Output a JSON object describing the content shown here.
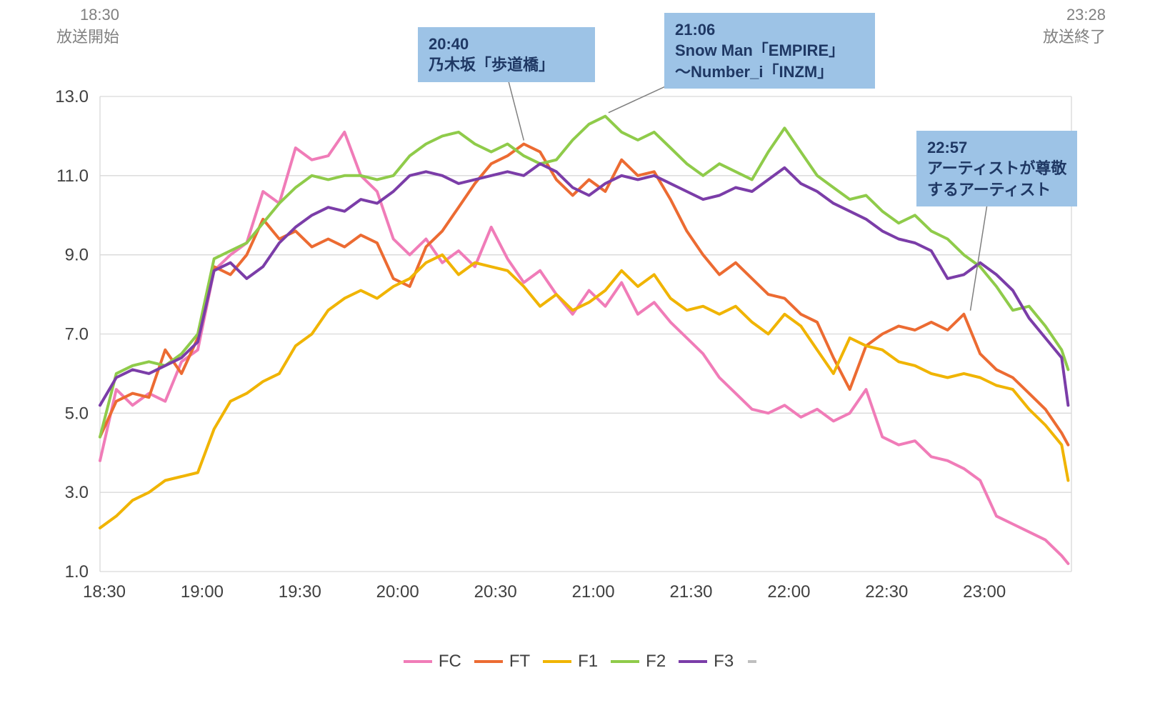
{
  "header": {
    "start_time": "18:30",
    "start_caption": "放送開始",
    "end_time": "23:28",
    "end_caption": "放送終了"
  },
  "chart_data": {
    "type": "line",
    "title": "",
    "grid": "horizontal",
    "legend_position": "bottom-center",
    "x_axis": {
      "unit": "minutes_after_18:30",
      "range": [
        0,
        298
      ],
      "ticks": [
        0,
        30,
        60,
        90,
        120,
        150,
        180,
        210,
        240,
        270
      ],
      "tick_labels": [
        "18:30",
        "19:00",
        "19:30",
        "20:00",
        "20:30",
        "21:00",
        "21:30",
        "22:00",
        "22:30",
        "23:00"
      ]
    },
    "y_axis": {
      "ylim": [
        1,
        13
      ],
      "ticks": [
        1,
        3,
        5,
        7,
        9,
        11,
        13
      ],
      "tick_labels": [
        "1.0",
        "3.0",
        "5.0",
        "7.0",
        "9.0",
        "11.0",
        "13.0"
      ]
    },
    "x_minutes": [
      0,
      5,
      10,
      15,
      20,
      25,
      30,
      35,
      40,
      45,
      50,
      55,
      60,
      65,
      70,
      75,
      80,
      85,
      90,
      95,
      100,
      105,
      110,
      115,
      120,
      125,
      130,
      135,
      140,
      145,
      150,
      155,
      160,
      165,
      170,
      175,
      180,
      185,
      190,
      195,
      200,
      205,
      210,
      215,
      220,
      225,
      230,
      235,
      240,
      245,
      250,
      255,
      260,
      265,
      270,
      275,
      280,
      285,
      290,
      295,
      297
    ],
    "series": [
      {
        "name": "FC",
        "color": "#F07CB8",
        "values": [
          3.8,
          5.6,
          5.2,
          5.5,
          5.3,
          6.3,
          6.6,
          8.6,
          9.0,
          9.3,
          10.6,
          10.3,
          11.7,
          11.4,
          11.5,
          12.1,
          11.0,
          10.6,
          9.4,
          9.0,
          9.4,
          8.8,
          9.1,
          8.7,
          9.7,
          8.9,
          8.3,
          8.6,
          8.0,
          7.5,
          8.1,
          7.7,
          8.3,
          7.5,
          7.8,
          7.3,
          6.9,
          6.5,
          5.9,
          5.5,
          5.1,
          5.0,
          5.2,
          4.9,
          5.1,
          4.8,
          5.0,
          5.6,
          4.4,
          4.2,
          4.3,
          3.9,
          3.8,
          3.6,
          3.3,
          2.4,
          2.2,
          2.0,
          1.8,
          1.4,
          1.2
        ]
      },
      {
        "name": "FT",
        "color": "#EC6B32",
        "values": [
          4.4,
          5.3,
          5.5,
          5.4,
          6.6,
          6.0,
          6.9,
          8.7,
          8.5,
          9.0,
          9.9,
          9.4,
          9.6,
          9.2,
          9.4,
          9.2,
          9.5,
          9.3,
          8.4,
          8.2,
          9.2,
          9.6,
          10.2,
          10.8,
          11.3,
          11.5,
          11.8,
          11.6,
          10.9,
          10.5,
          10.9,
          10.6,
          11.4,
          11.0,
          11.1,
          10.4,
          9.6,
          9.0,
          8.5,
          8.8,
          8.4,
          8.0,
          7.9,
          7.5,
          7.3,
          6.4,
          5.6,
          6.7,
          7.0,
          7.2,
          7.1,
          7.3,
          7.1,
          7.5,
          6.5,
          6.1,
          5.9,
          5.5,
          5.1,
          4.5,
          4.2
        ]
      },
      {
        "name": "F1",
        "color": "#F0B400",
        "values": [
          2.1,
          2.4,
          2.8,
          3.0,
          3.3,
          3.4,
          3.5,
          4.6,
          5.3,
          5.5,
          5.8,
          6.0,
          6.7,
          7.0,
          7.6,
          7.9,
          8.1,
          7.9,
          8.2,
          8.4,
          8.8,
          9.0,
          8.5,
          8.8,
          8.7,
          8.6,
          8.2,
          7.7,
          8.0,
          7.6,
          7.8,
          8.1,
          8.6,
          8.2,
          8.5,
          7.9,
          7.6,
          7.7,
          7.5,
          7.7,
          7.3,
          7.0,
          7.5,
          7.2,
          6.6,
          6.0,
          6.9,
          6.7,
          6.6,
          6.3,
          6.2,
          6.0,
          5.9,
          6.0,
          5.9,
          5.7,
          5.6,
          5.1,
          4.7,
          4.2,
          3.3
        ]
      },
      {
        "name": "F2",
        "color": "#8FCB4A",
        "values": [
          4.4,
          6.0,
          6.2,
          6.3,
          6.2,
          6.5,
          7.0,
          8.9,
          9.1,
          9.3,
          9.8,
          10.3,
          10.7,
          11.0,
          10.9,
          11.0,
          11.0,
          10.9,
          11.0,
          11.5,
          11.8,
          12.0,
          12.1,
          11.8,
          11.6,
          11.8,
          11.5,
          11.3,
          11.4,
          11.9,
          12.3,
          12.5,
          12.1,
          11.9,
          12.1,
          11.7,
          11.3,
          11.0,
          11.3,
          11.1,
          10.9,
          11.6,
          12.2,
          11.6,
          11.0,
          10.7,
          10.4,
          10.5,
          10.1,
          9.8,
          10.0,
          9.6,
          9.4,
          9.0,
          8.7,
          8.2,
          7.6,
          7.7,
          7.2,
          6.6,
          6.1
        ]
      },
      {
        "name": "F3",
        "color": "#7B3DA8",
        "values": [
          5.2,
          5.9,
          6.1,
          6.0,
          6.2,
          6.4,
          6.8,
          8.6,
          8.8,
          8.4,
          8.7,
          9.3,
          9.7,
          10.0,
          10.2,
          10.1,
          10.4,
          10.3,
          10.6,
          11.0,
          11.1,
          11.0,
          10.8,
          10.9,
          11.0,
          11.1,
          11.0,
          11.3,
          11.1,
          10.7,
          10.5,
          10.8,
          11.0,
          10.9,
          11.0,
          10.8,
          10.6,
          10.4,
          10.5,
          10.7,
          10.6,
          10.9,
          11.2,
          10.8,
          10.6,
          10.3,
          10.1,
          9.9,
          9.6,
          9.4,
          9.3,
          9.1,
          8.4,
          8.5,
          8.8,
          8.5,
          8.1,
          7.4,
          6.9,
          6.4,
          5.2
        ]
      }
    ],
    "legend_extra_dash": {
      "label": "",
      "color": "#BFBFBF"
    },
    "annotations": [
      {
        "lines": [
          "20:40",
          "乃木坂「歩道橋」"
        ],
        "target_min": 130,
        "target_value": 11.8
      },
      {
        "lines": [
          "21:06",
          "Snow Man「EMPIRE」",
          "〜Number_i「INZM」"
        ],
        "target_min": 156,
        "target_value": 12.5
      },
      {
        "lines": [
          "22:57",
          "アーティストが尊敬",
          "するアーティスト"
        ],
        "target_min": 267,
        "target_value": 7.5
      }
    ],
    "style": {
      "gridline_color": "#D9D9D9",
      "axis_text_color": "#404040",
      "corner_text_color": "#808080",
      "annotation_bg": "#9DC3E6",
      "annotation_text": "#1F3864",
      "leader_line_color": "#7F7F7F"
    }
  }
}
